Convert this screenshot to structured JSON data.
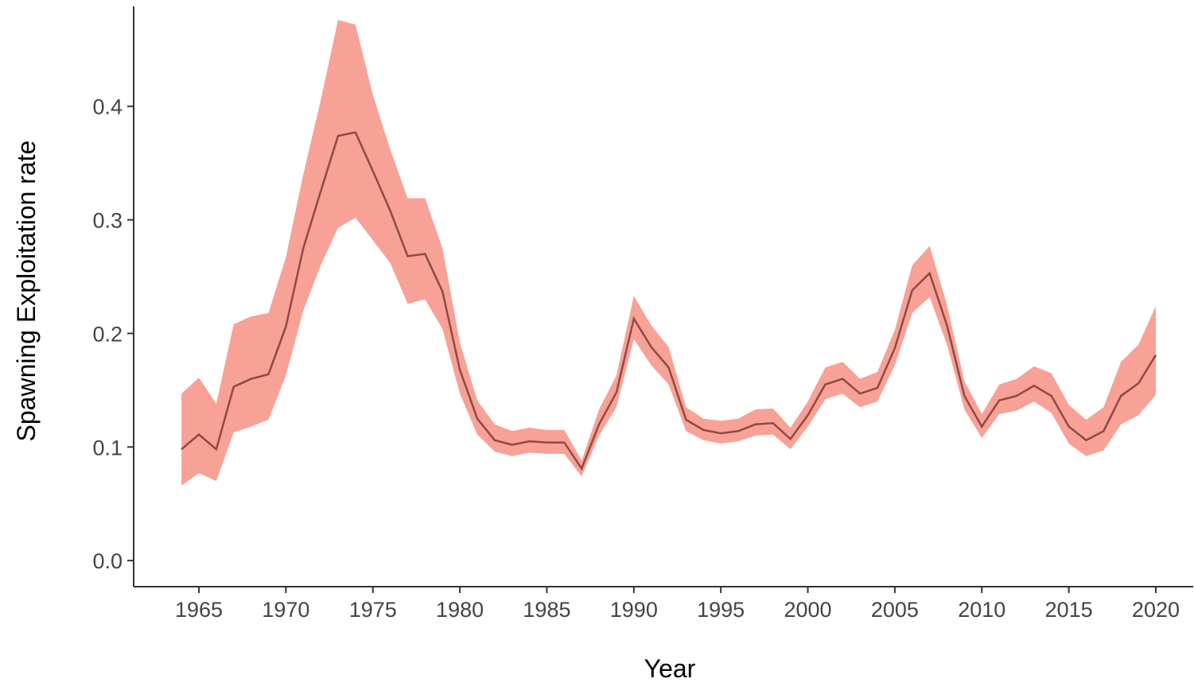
{
  "chart_data": {
    "type": "line",
    "x_label": "Year",
    "y_label": "Spawning Exploitation rate",
    "x": [
      1964,
      1965,
      1966,
      1967,
      1968,
      1969,
      1970,
      1971,
      1972,
      1973,
      1974,
      1975,
      1976,
      1977,
      1978,
      1979,
      1980,
      1981,
      1982,
      1983,
      1984,
      1985,
      1986,
      1987,
      1988,
      1989,
      1990,
      1991,
      1992,
      1993,
      1994,
      1995,
      1996,
      1997,
      1998,
      1999,
      2000,
      2001,
      2002,
      2003,
      2004,
      2005,
      2006,
      2007,
      2008,
      2009,
      2010,
      2011,
      2012,
      2013,
      2014,
      2015,
      2016,
      2017,
      2018,
      2019,
      2020
    ],
    "values": [
      0.098,
      0.111,
      0.098,
      0.153,
      0.16,
      0.164,
      0.206,
      0.275,
      0.325,
      0.374,
      0.377,
      0.343,
      0.308,
      0.268,
      0.27,
      0.237,
      0.168,
      0.125,
      0.106,
      0.102,
      0.105,
      0.104,
      0.104,
      0.081,
      0.12,
      0.148,
      0.213,
      0.188,
      0.17,
      0.124,
      0.115,
      0.112,
      0.114,
      0.12,
      0.121,
      0.107,
      0.128,
      0.155,
      0.16,
      0.147,
      0.152,
      0.187,
      0.238,
      0.253,
      0.207,
      0.145,
      0.118,
      0.141,
      0.145,
      0.154,
      0.145,
      0.118,
      0.106,
      0.114,
      0.145,
      0.156,
      0.181
    ],
    "ci_lower": [
      0.066,
      0.077,
      0.07,
      0.113,
      0.118,
      0.124,
      0.163,
      0.22,
      0.26,
      0.293,
      0.302,
      0.282,
      0.262,
      0.226,
      0.23,
      0.204,
      0.147,
      0.111,
      0.096,
      0.092,
      0.095,
      0.094,
      0.094,
      0.074,
      0.11,
      0.135,
      0.195,
      0.172,
      0.155,
      0.114,
      0.106,
      0.103,
      0.105,
      0.11,
      0.111,
      0.098,
      0.118,
      0.142,
      0.147,
      0.135,
      0.14,
      0.172,
      0.218,
      0.232,
      0.19,
      0.133,
      0.108,
      0.129,
      0.132,
      0.14,
      0.13,
      0.103,
      0.092,
      0.097,
      0.12,
      0.128,
      0.146
    ],
    "ci_upper": [
      0.147,
      0.161,
      0.138,
      0.208,
      0.215,
      0.218,
      0.267,
      0.34,
      0.405,
      0.476,
      0.472,
      0.41,
      0.362,
      0.319,
      0.319,
      0.275,
      0.192,
      0.141,
      0.12,
      0.114,
      0.117,
      0.115,
      0.115,
      0.088,
      0.133,
      0.163,
      0.233,
      0.207,
      0.188,
      0.135,
      0.125,
      0.123,
      0.125,
      0.133,
      0.134,
      0.117,
      0.14,
      0.17,
      0.175,
      0.16,
      0.166,
      0.203,
      0.26,
      0.277,
      0.225,
      0.158,
      0.129,
      0.155,
      0.16,
      0.171,
      0.165,
      0.137,
      0.124,
      0.135,
      0.175,
      0.19,
      0.224
    ],
    "color": "#8e4a44",
    "band_color": "#f8a196",
    "xlim": [
      1961.25,
      2022.15
    ],
    "xticks": [
      1965,
      1970,
      1975,
      1980,
      1985,
      1990,
      1995,
      2000,
      2005,
      2010,
      2015,
      2020
    ],
    "ylim": [
      -0.023,
      0.488
    ],
    "yticks": [
      {
        "value": 0,
        "label": "0.0"
      },
      0.1,
      0.2,
      0.3,
      0.4
    ]
  }
}
